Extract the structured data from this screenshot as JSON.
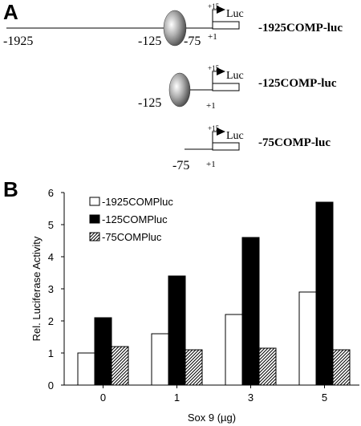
{
  "panel_a": {
    "label": "A",
    "constructs": [
      {
        "name": "-1925COMP-luc",
        "left_coord": "-1925",
        "protein_coord": "-125",
        "minus75": "-75",
        "plus1": "+1",
        "plus15": "+15",
        "reporter": "Luc"
      },
      {
        "name": "-125COMP-luc",
        "left_coord": "-125",
        "plus1": "+1",
        "plus15": "+15",
        "reporter": "Luc"
      },
      {
        "name": "-75COMP-luc",
        "left_coord": "-75",
        "plus1": "+1",
        "plus15": "+15",
        "reporter": "Luc"
      }
    ]
  },
  "panel_b": {
    "label": "B"
  },
  "chart_data": {
    "type": "bar",
    "categories": [
      "0",
      "1",
      "3",
      "5"
    ],
    "series": [
      {
        "name": "-1925COMPluc",
        "values": [
          1.0,
          1.6,
          2.2,
          2.9
        ],
        "fill": "white"
      },
      {
        "name": "-125COMPluc",
        "values": [
          2.1,
          3.4,
          4.6,
          5.7
        ],
        "fill": "black"
      },
      {
        "name": "-75COMPluc",
        "values": [
          1.2,
          1.1,
          1.15,
          1.1
        ],
        "fill": "hatched"
      }
    ],
    "xlabel": "Sox 9 (µg)",
    "ylabel": "Rel. Luciferase Activity",
    "ylim": [
      0,
      6
    ],
    "yticks": [
      "0",
      "1",
      "2",
      "3",
      "4",
      "5",
      "6"
    ],
    "grid": false,
    "legend": "top-left"
  }
}
